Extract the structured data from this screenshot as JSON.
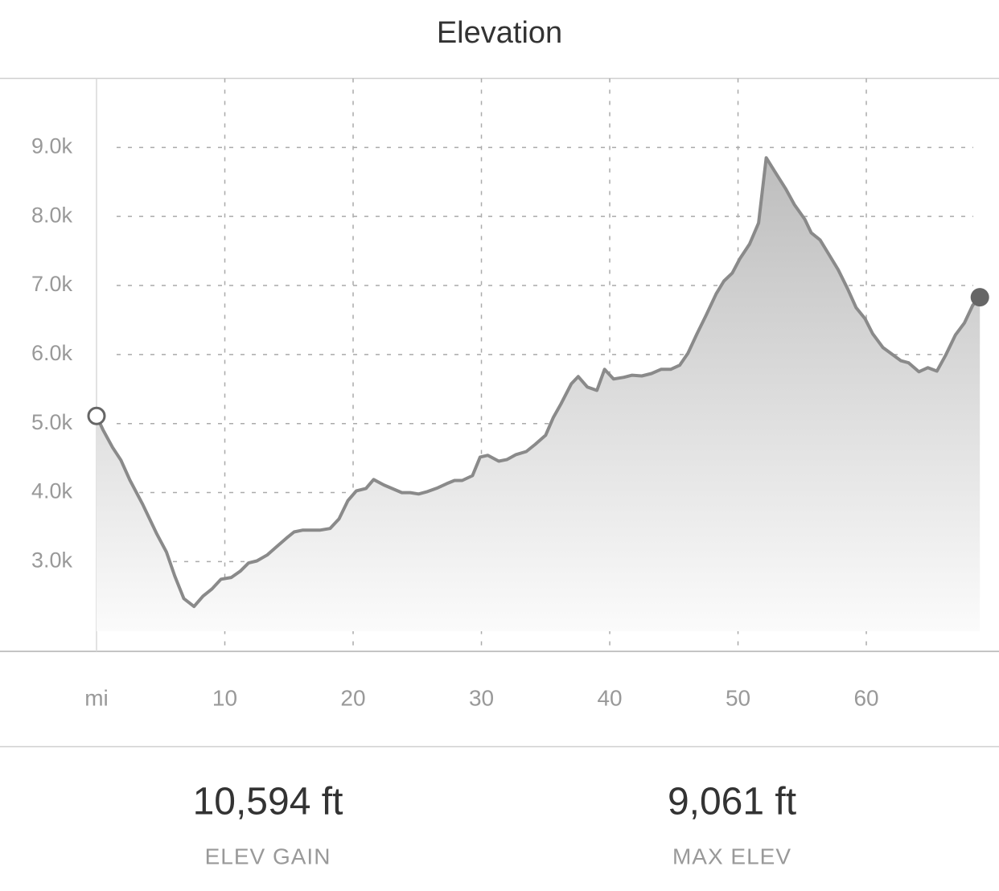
{
  "chart_data": {
    "type": "area",
    "title": "Elevation",
    "x": [
      0,
      0.5,
      1.25,
      1.9,
      2.6,
      3.6,
      4.7,
      5.45,
      6.1,
      6.8,
      7.6,
      8.3,
      9.0,
      9.7,
      10.5,
      11.2,
      11.85,
      12.5,
      13.3,
      14.0,
      14.8,
      15.4,
      16.05,
      17.4,
      18.2,
      18.9,
      19.6,
      20.25,
      21.0,
      21.6,
      22.4,
      23.8,
      24.45,
      25.1,
      25.8,
      26.6,
      27.3,
      27.9,
      28.5,
      29.3,
      29.9,
      30.5,
      31.35,
      32.0,
      32.7,
      33.5,
      34.2,
      35.0,
      35.6,
      36.2,
      37.0,
      37.55,
      38.25,
      39.0,
      39.6,
      40.3,
      41.1,
      41.75,
      42.5,
      43.25,
      44.0,
      44.75,
      45.45,
      46.1,
      46.8,
      47.5,
      48.3,
      48.9,
      49.55,
      50.15,
      50.9,
      51.6,
      52.2,
      52.9,
      53.7,
      54.4,
      55.2,
      55.7,
      56.4,
      57.05,
      57.8,
      58.55,
      59.2,
      59.9,
      60.5,
      61.3,
      62.0,
      62.7,
      63.3,
      64.1,
      64.8,
      65.5,
      66.2,
      66.95,
      67.65,
      68.3,
      68.85
    ],
    "series": [
      {
        "color": "#8a8a8a",
        "values": [
          5110,
          4910,
          4655,
          4470,
          4180,
          3830,
          3400,
          3140,
          2790,
          2465,
          2350,
          2500,
          2605,
          2745,
          2770,
          2860,
          2980,
          3010,
          3095,
          3210,
          3340,
          3430,
          3455,
          3455,
          3480,
          3620,
          3885,
          4025,
          4060,
          4190,
          4110,
          4000,
          4000,
          3980,
          4015,
          4070,
          4130,
          4175,
          4175,
          4245,
          4515,
          4540,
          4455,
          4480,
          4550,
          4595,
          4700,
          4830,
          5085,
          5285,
          5575,
          5680,
          5530,
          5480,
          5785,
          5645,
          5670,
          5700,
          5690,
          5725,
          5785,
          5785,
          5845,
          6020,
          6300,
          6565,
          6880,
          7065,
          7180,
          7390,
          7600,
          7905,
          8850,
          8640,
          8405,
          8170,
          7960,
          7765,
          7660,
          7460,
          7230,
          6950,
          6680,
          6520,
          6300,
          6100,
          6005,
          5910,
          5880,
          5750,
          5810,
          5760,
          5995,
          6285,
          6460,
          6715,
          6830
        ]
      }
    ],
    "xlim": [
      0,
      69
    ],
    "ylim": [
      1700,
      10000
    ],
    "xticks": [
      {
        "value": 0,
        "label": "mi"
      },
      10,
      20,
      30,
      40,
      50,
      60
    ],
    "yticks": [
      {
        "value": 2000,
        "label": null
      },
      {
        "value": 3000,
        "label": "3.0k"
      },
      {
        "value": 4000,
        "label": "4.0k"
      },
      {
        "value": 5000,
        "label": "5.0k"
      },
      {
        "value": 6000,
        "label": "6.0k"
      },
      {
        "value": 7000,
        "label": "7.0k"
      },
      {
        "value": 8000,
        "label": "8.0k"
      },
      {
        "value": 9000,
        "label": "9.0k"
      }
    ],
    "grid": true
  },
  "stats": [
    {
      "value": "10,594 ft",
      "label": "ELEV GAIN"
    },
    {
      "value": "9,061 ft",
      "label": "MAX ELEV"
    }
  ]
}
